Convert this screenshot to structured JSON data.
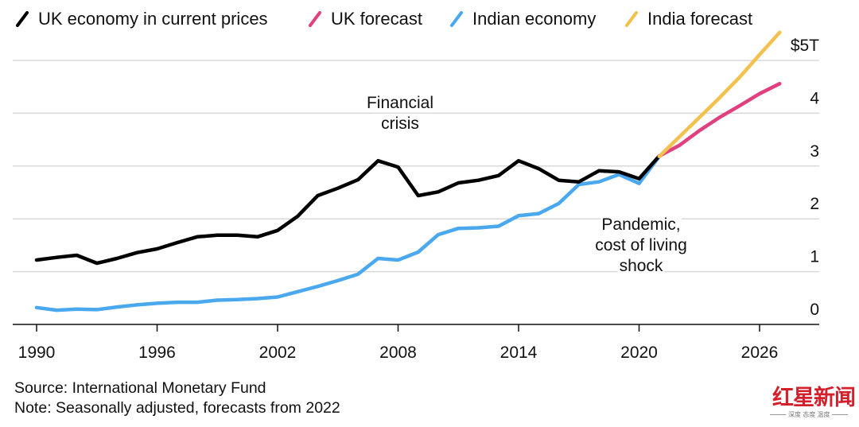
{
  "chart_data": {
    "type": "line",
    "title": "",
    "xlabel": "",
    "ylabel": "",
    "y_unit_label": "$5T",
    "xlim": [
      1989.8,
      2029.0
    ],
    "ylim": [
      0,
      5
    ],
    "x_ticks": [
      1990,
      1996,
      2002,
      2008,
      2014,
      2020,
      2026
    ],
    "x_tick_labels": [
      "1990",
      "1996",
      "2002",
      "2008",
      "2014",
      "2020",
      "2026"
    ],
    "y_ticks": [
      0,
      1,
      2,
      3,
      4,
      5
    ],
    "y_tick_labels": [
      "0",
      "1",
      "2",
      "3",
      "4",
      "$5T"
    ],
    "grid": true,
    "legend_position": "top",
    "legend": [
      {
        "name": "UK economy in current prices",
        "color": "#000000"
      },
      {
        "name": "UK forecast",
        "color": "#e0407f"
      },
      {
        "name": "Indian economy",
        "color": "#4aa8ef"
      },
      {
        "name": "India forecast",
        "color": "#f2c14e"
      }
    ],
    "series": [
      {
        "name": "UK economy in current prices",
        "color": "#000000",
        "x": [
          1990,
          1991,
          1992,
          1993,
          1994,
          1995,
          1996,
          1997,
          1998,
          1999,
          2000,
          2001,
          2002,
          2003,
          2004,
          2005,
          2006,
          2007,
          2008,
          2009,
          2010,
          2011,
          2012,
          2013,
          2014,
          2015,
          2016,
          2017,
          2018,
          2019,
          2020,
          2021
        ],
        "values": [
          1.22,
          1.27,
          1.31,
          1.16,
          1.25,
          1.36,
          1.43,
          1.55,
          1.66,
          1.69,
          1.69,
          1.66,
          1.78,
          2.05,
          2.44,
          2.58,
          2.74,
          3.1,
          2.98,
          2.44,
          2.51,
          2.68,
          2.73,
          2.82,
          3.1,
          2.95,
          2.73,
          2.7,
          2.91,
          2.89,
          2.76,
          3.19
        ]
      },
      {
        "name": "Indian economy",
        "color": "#4aa8ef",
        "x": [
          1990,
          1991,
          1992,
          1993,
          1994,
          1995,
          1996,
          1997,
          1998,
          1999,
          2000,
          2001,
          2002,
          2003,
          2004,
          2005,
          2006,
          2007,
          2008,
          2009,
          2010,
          2011,
          2012,
          2013,
          2014,
          2015,
          2016,
          2017,
          2018,
          2019,
          2020,
          2021
        ],
        "values": [
          0.32,
          0.27,
          0.29,
          0.28,
          0.33,
          0.37,
          0.4,
          0.42,
          0.42,
          0.46,
          0.47,
          0.49,
          0.52,
          0.62,
          0.72,
          0.83,
          0.95,
          1.25,
          1.22,
          1.37,
          1.7,
          1.82,
          1.83,
          1.86,
          2.06,
          2.1,
          2.29,
          2.65,
          2.7,
          2.84,
          2.67,
          3.18
        ]
      },
      {
        "name": "UK forecast",
        "color": "#e0407f",
        "x": [
          2021,
          2022,
          2023,
          2024,
          2025,
          2026,
          2027
        ],
        "values": [
          3.19,
          3.39,
          3.67,
          3.92,
          4.14,
          4.37,
          4.56
        ]
      },
      {
        "name": "India forecast",
        "color": "#f2c14e",
        "x": [
          2021,
          2022,
          2023,
          2024,
          2025,
          2026,
          2027
        ],
        "values": [
          3.18,
          3.55,
          3.92,
          4.29,
          4.68,
          5.11,
          5.53
        ]
      }
    ],
    "annotations": [
      {
        "lines": [
          "Financial",
          "crisis"
        ],
        "x": 2008,
        "y": 4.2
      },
      {
        "lines": [
          "Pandemic,",
          "cost of living",
          "shock"
        ],
        "x": 2020,
        "y": 1.9
      }
    ]
  },
  "footer": {
    "source": "Source: International Monetary Fund",
    "note": "Note: Seasonally adjusted, forecasts from 2022"
  },
  "watermark": {
    "brand": "红星新闻",
    "tagline": "深度 态度 温度",
    "color": "#d3202a"
  }
}
